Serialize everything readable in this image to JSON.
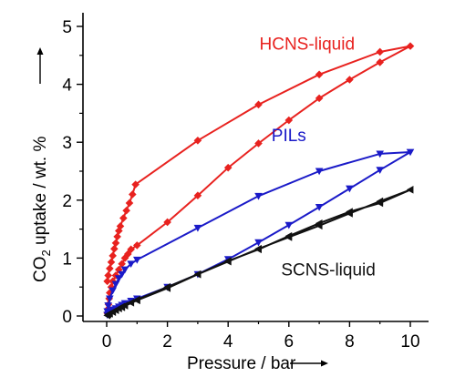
{
  "chart_data": {
    "type": "scatter",
    "title": "",
    "xlabel": "Pressure / bar",
    "ylabel": {
      "prefix": "CO",
      "subscript": "2",
      "suffix": " uptake / wt. %"
    },
    "xlim": [
      -1,
      10.6
    ],
    "ylim": [
      -0.1,
      5.0
    ],
    "xticks": [
      0,
      2,
      4,
      6,
      8,
      10
    ],
    "yticks": [
      0,
      1,
      2,
      3,
      4,
      5
    ],
    "grid": false,
    "series": [
      {
        "name": "HCNS-liquid",
        "color": "#e8221f",
        "marker": "diamond",
        "points": [
          [
            0.02,
            0.05
          ],
          [
            0.04,
            0.12
          ],
          [
            0.06,
            0.2
          ],
          [
            0.08,
            0.3
          ],
          [
            0.1,
            0.4
          ],
          [
            0.15,
            0.5
          ],
          [
            0.2,
            0.6
          ],
          [
            0.3,
            0.7
          ],
          [
            0.4,
            0.8
          ],
          [
            0.5,
            0.9
          ],
          [
            0.6,
            1.0
          ],
          [
            0.7,
            1.07
          ],
          [
            0.8,
            1.15
          ],
          [
            1.0,
            1.22
          ],
          [
            2.0,
            1.62
          ],
          [
            3.0,
            2.08
          ],
          [
            4.0,
            2.56
          ],
          [
            5.0,
            2.98
          ],
          [
            6.0,
            3.38
          ],
          [
            7.0,
            3.76
          ],
          [
            8.0,
            4.08
          ],
          [
            9.0,
            4.38
          ],
          [
            10.0,
            4.66
          ],
          [
            9.0,
            4.56
          ],
          [
            7.0,
            4.17
          ],
          [
            5.0,
            3.65
          ],
          [
            3.0,
            3.03
          ],
          [
            0.95,
            2.27
          ],
          [
            0.85,
            2.1
          ],
          [
            0.75,
            1.95
          ],
          [
            0.65,
            1.82
          ],
          [
            0.55,
            1.69
          ],
          [
            0.45,
            1.55
          ],
          [
            0.4,
            1.47
          ],
          [
            0.35,
            1.37
          ],
          [
            0.3,
            1.26
          ],
          [
            0.25,
            1.16
          ],
          [
            0.2,
            1.04
          ],
          [
            0.15,
            0.93
          ],
          [
            0.1,
            0.82
          ],
          [
            0.05,
            0.7
          ],
          [
            0.02,
            0.6
          ]
        ]
      },
      {
        "name": "PILs",
        "color": "#1a1ac8",
        "marker": "triangle-down",
        "points": [
          [
            0.02,
            0.02
          ],
          [
            0.05,
            0.05
          ],
          [
            0.1,
            0.08
          ],
          [
            0.2,
            0.11
          ],
          [
            0.3,
            0.13
          ],
          [
            0.4,
            0.16
          ],
          [
            0.5,
            0.19
          ],
          [
            0.6,
            0.22
          ],
          [
            0.8,
            0.26
          ],
          [
            1.0,
            0.3
          ],
          [
            2.0,
            0.5
          ],
          [
            3.0,
            0.72
          ],
          [
            4.0,
            0.98
          ],
          [
            5.0,
            1.27
          ],
          [
            6.0,
            1.57
          ],
          [
            7.0,
            1.88
          ],
          [
            8.0,
            2.2
          ],
          [
            9.0,
            2.52
          ],
          [
            10.0,
            2.83
          ],
          [
            9.0,
            2.8
          ],
          [
            7.0,
            2.5
          ],
          [
            5.0,
            2.07
          ],
          [
            3.0,
            1.52
          ],
          [
            1.0,
            0.97
          ],
          [
            0.8,
            0.9
          ],
          [
            0.6,
            0.8
          ],
          [
            0.5,
            0.72
          ],
          [
            0.4,
            0.65
          ],
          [
            0.3,
            0.55
          ],
          [
            0.2,
            0.44
          ],
          [
            0.1,
            0.3
          ],
          [
            0.05,
            0.18
          ],
          [
            0.02,
            0.08
          ]
        ]
      },
      {
        "name": "SCNS-liquid",
        "color": "#111111",
        "marker": "triangle-left",
        "points": [
          [
            0.02,
            0.01
          ],
          [
            0.1,
            0.04
          ],
          [
            0.2,
            0.07
          ],
          [
            0.3,
            0.1
          ],
          [
            0.4,
            0.13
          ],
          [
            0.5,
            0.16
          ],
          [
            0.6,
            0.18
          ],
          [
            0.8,
            0.23
          ],
          [
            1.0,
            0.28
          ],
          [
            2.0,
            0.5
          ],
          [
            3.0,
            0.72
          ],
          [
            4.0,
            0.94
          ],
          [
            5.0,
            1.16
          ],
          [
            6.0,
            1.36
          ],
          [
            7.0,
            1.56
          ],
          [
            8.0,
            1.77
          ],
          [
            9.0,
            1.98
          ],
          [
            10.0,
            2.18
          ],
          [
            9.0,
            1.95
          ],
          [
            8.0,
            1.8
          ],
          [
            7.0,
            1.6
          ],
          [
            6.0,
            1.38
          ],
          [
            5.0,
            1.15
          ],
          [
            4.0,
            0.95
          ],
          [
            3.0,
            0.72
          ],
          [
            2.0,
            0.48
          ],
          [
            1.0,
            0.27
          ],
          [
            0.5,
            0.15
          ],
          [
            0.2,
            0.07
          ],
          [
            0.05,
            0.03
          ]
        ]
      }
    ],
    "annotations": [
      {
        "text": "HCNS-liquid",
        "x": 6.6,
        "y": 4.6,
        "color": "#e8221f"
      },
      {
        "text": "PILs",
        "x": 6.0,
        "y": 3.02,
        "color": "#1a1ac8"
      },
      {
        "text": "SCNS-liquid",
        "x": 7.3,
        "y": 0.7,
        "color": "#111111"
      }
    ]
  }
}
